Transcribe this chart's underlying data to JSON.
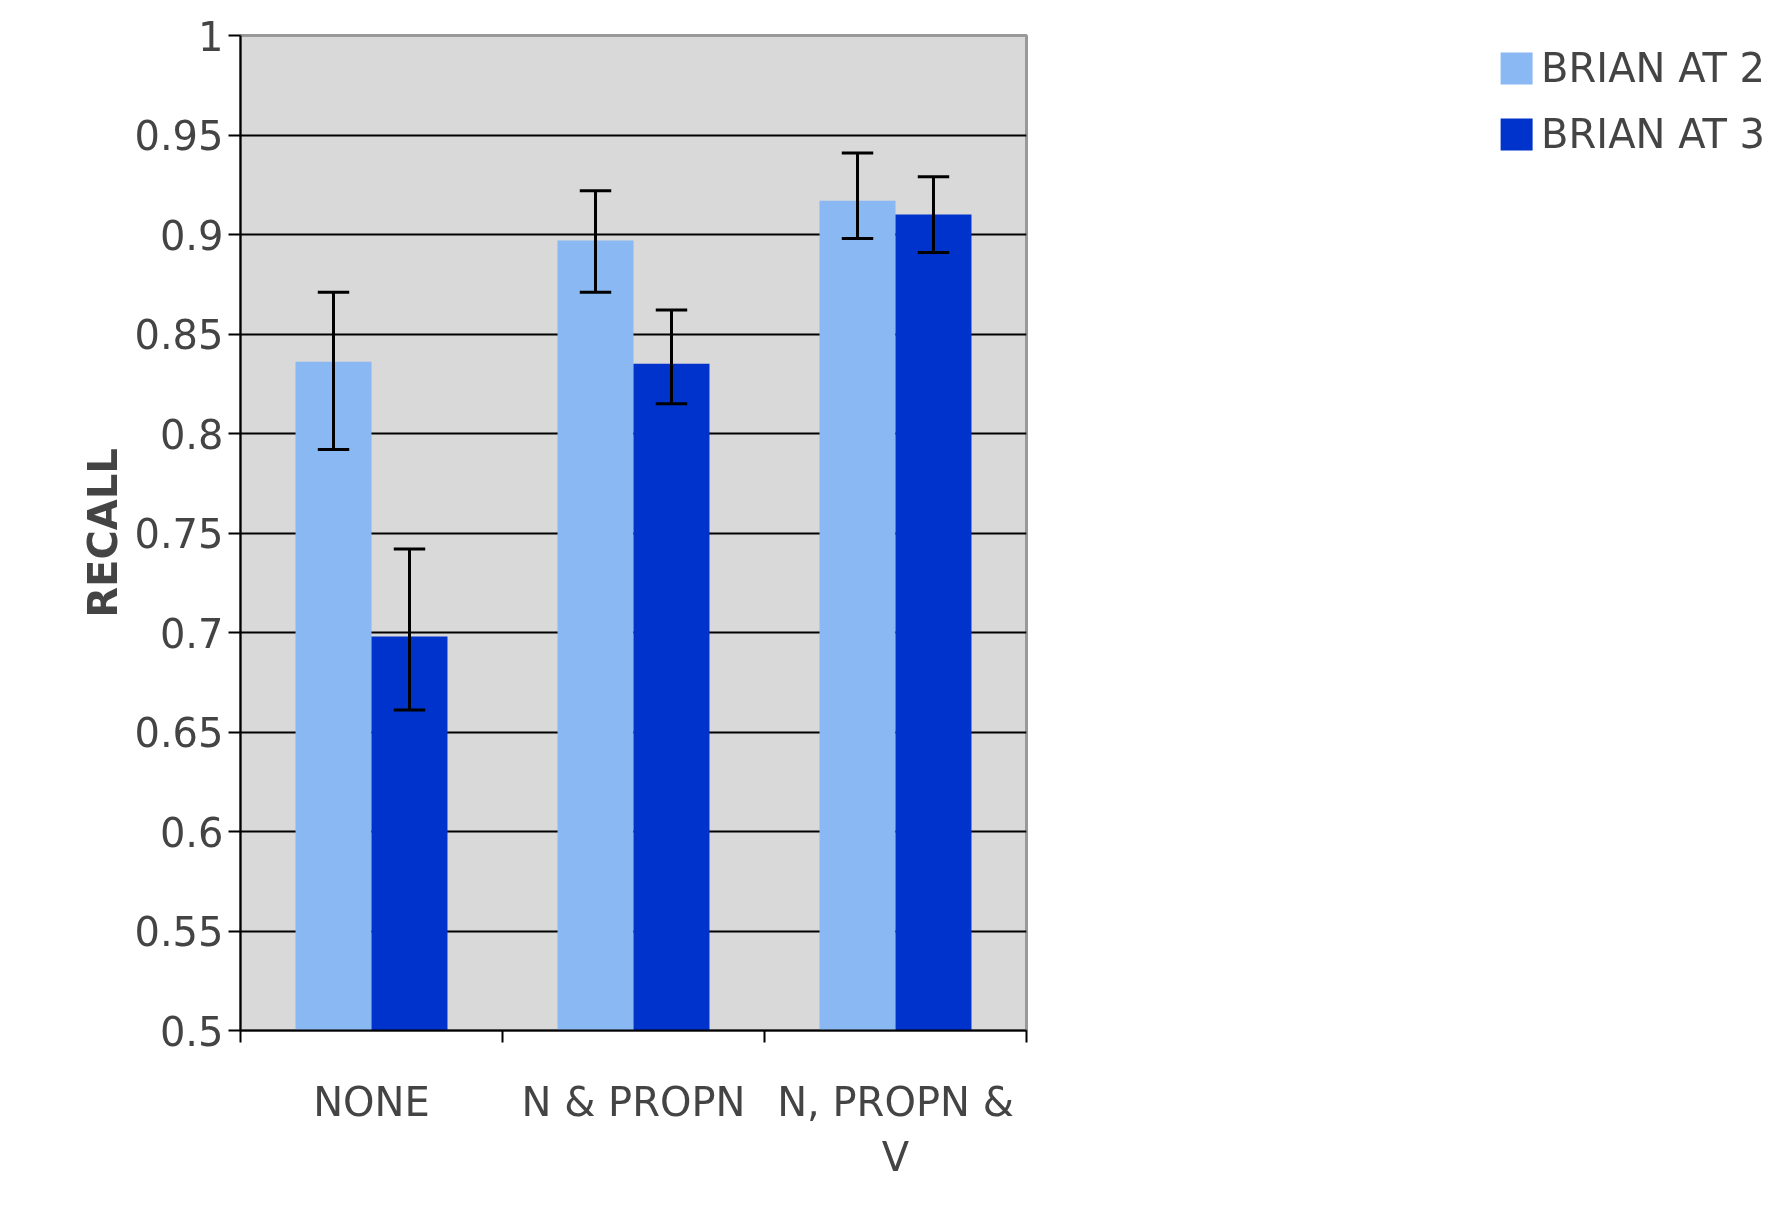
{
  "chart_data": {
    "type": "bar",
    "ylabel": "RECALL",
    "categories": [
      "NONE",
      "N & PROPN",
      "N, PROPN & V"
    ],
    "series": [
      {
        "name": "BRIAN AT 2",
        "color": "#8ab8f2",
        "values": [
          0.836,
          0.897,
          0.917
        ],
        "errors": [
          [
            0.792,
            0.871
          ],
          [
            0.871,
            0.922
          ],
          [
            0.898,
            0.941
          ]
        ]
      },
      {
        "name": "BRIAN AT 3",
        "color": "#0033cc",
        "values": [
          0.698,
          0.835,
          0.91
        ],
        "errors": [
          [
            0.661,
            0.742
          ],
          [
            0.815,
            0.862
          ],
          [
            0.891,
            0.929
          ]
        ]
      }
    ],
    "ylim": [
      0.5,
      1
    ],
    "yticks": [
      0.5,
      0.55,
      0.6,
      0.65,
      0.7,
      0.75,
      0.8,
      0.85,
      0.9,
      0.95,
      1
    ],
    "grid": "y",
    "legend": "right"
  }
}
